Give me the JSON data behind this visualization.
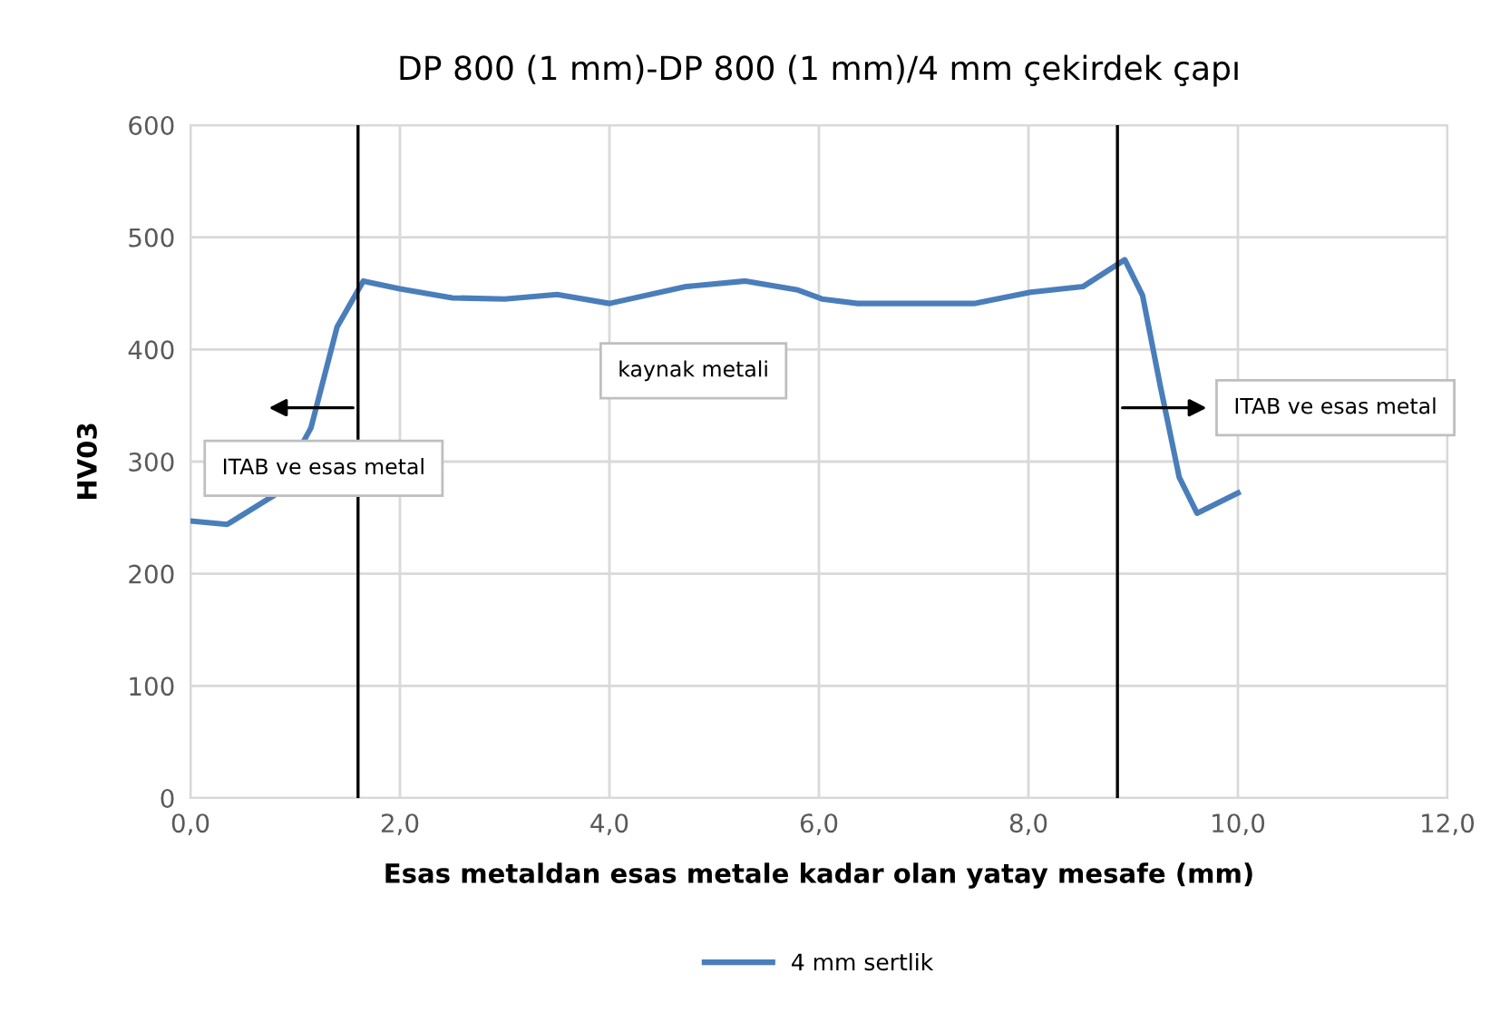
{
  "chart_data": {
    "type": "line",
    "title": "DP 800 (1 mm)-DP 800 (1 mm)/4 mm çekirdek çapı",
    "xlabel": "Esas metaldan esas metale kadar olan yatay mesafe (mm)",
    "ylabel": "HV03",
    "series": [
      {
        "name": "4 mm sertlik",
        "color": "#4a7ebb",
        "x": [
          0,
          0.35,
          0.8,
          1.15,
          1.4,
          1.65,
          2.0,
          2.5,
          3.0,
          3.5,
          4.0,
          4.73,
          5.3,
          5.8,
          6.03,
          6.37,
          7.48,
          8.02,
          8.52,
          8.92,
          9.09,
          9.26,
          9.44,
          9.61,
          10.0
        ],
        "values": [
          247,
          244,
          270,
          330,
          420,
          461,
          454,
          446,
          445,
          449,
          441,
          456,
          461,
          453,
          445,
          441,
          441,
          451,
          456,
          480,
          448,
          367,
          286,
          254,
          272
        ]
      }
    ],
    "xlim": [
      0,
      12
    ],
    "ylim": [
      0,
      600
    ],
    "xticks": [
      {
        "value": 0,
        "label": "0,0"
      },
      {
        "value": 2,
        "label": "2,0"
      },
      {
        "value": 4,
        "label": "4,0"
      },
      {
        "value": 6,
        "label": "6,0"
      },
      {
        "value": 8,
        "label": "8,0"
      },
      {
        "value": 10,
        "label": "10,0"
      },
      {
        "value": 12,
        "label": "12,0"
      }
    ],
    "yticks": [
      0,
      100,
      200,
      300,
      400,
      500,
      600
    ],
    "ref_lines": [
      {
        "axis": "x",
        "value": 1.6,
        "color": "#000000"
      },
      {
        "axis": "x",
        "value": 8.85,
        "color": "#000000"
      }
    ],
    "annotations": [
      "ITAB ve esas metal",
      "kaynak metali",
      "ITAB ve esas metal"
    ],
    "grid": true,
    "legend": "bottom",
    "marker": "none",
    "line_style": "solid"
  }
}
